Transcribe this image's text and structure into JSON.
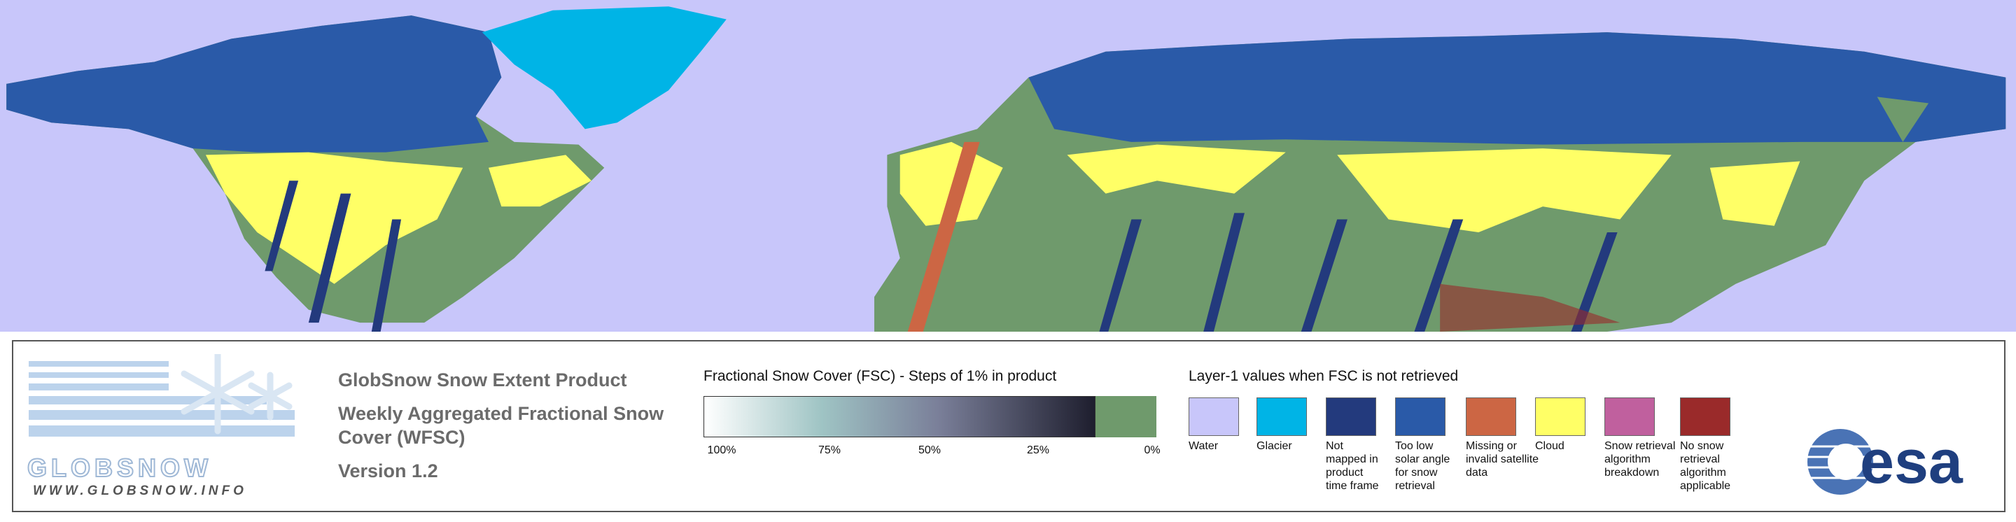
{
  "logo": {
    "name": "GLOBSNOW",
    "url": "WWW.GLOBSNOW.INFO"
  },
  "product": {
    "title": "GlobSnow Snow Extent Product",
    "subtitle": "Weekly Aggregated Fractional Snow Cover (WFSC)",
    "version": "Version 1.2"
  },
  "fsc_legend": {
    "title": "Fractional Snow Cover (FSC) - Steps of 1% in product",
    "ticks": [
      "100%",
      "75%",
      "50%",
      "25%",
      "0%"
    ],
    "start_color": "#ffffff",
    "end_color": "#1e1e2e",
    "no_snow_color": "#6f9a6c"
  },
  "layer1_legend": {
    "title": "Layer-1 values when FSC is not retrieved",
    "items": [
      {
        "label": "Water",
        "color": "#c8c6fa"
      },
      {
        "label": "Glacier",
        "color": "#00b4e6"
      },
      {
        "label": "Not mapped in product time frame",
        "color": "#233a7d"
      },
      {
        "label": "Too low solar angle for snow retrieval",
        "color": "#2a5aa8"
      },
      {
        "label": "Missing or invalid satellite data",
        "color": "#cc6644"
      },
      {
        "label": "Cloud",
        "color": "#ffff66"
      },
      {
        "label": "Snow retrieval algorithm breakdown",
        "color": "#c0609e"
      },
      {
        "label": "No snow retrieval algorithm applicable",
        "color": "#9a2a2a"
      }
    ]
  },
  "agency": "esa"
}
